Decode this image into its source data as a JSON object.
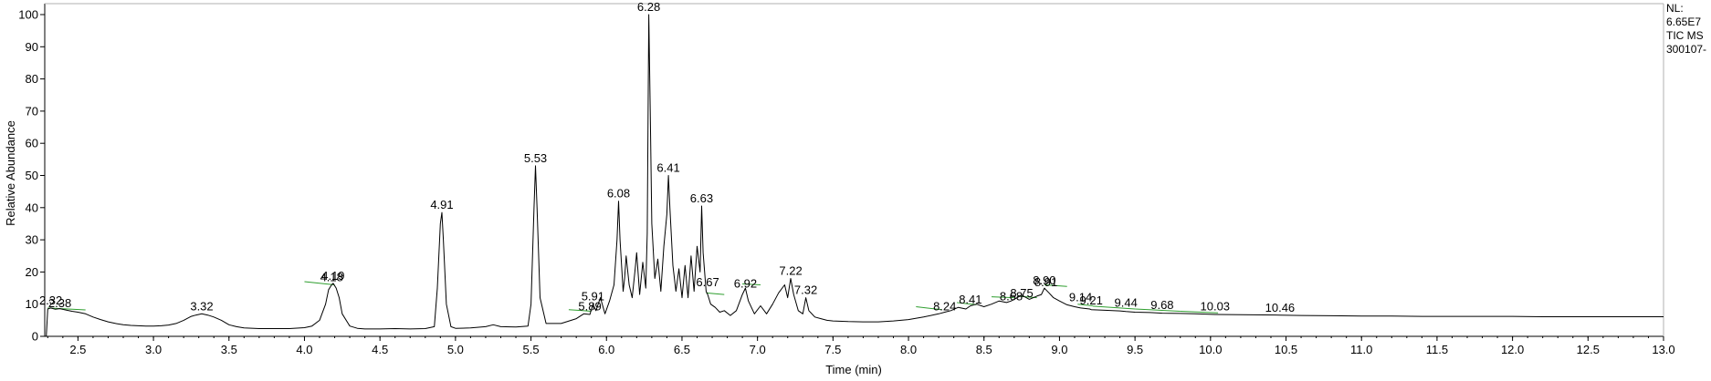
{
  "chart_data": {
    "type": "line",
    "title": "",
    "xlabel": "Time (min)",
    "ylabel": "Relative Abundance",
    "xlim": [
      2.28,
      13.0
    ],
    "ylim": [
      0,
      100
    ],
    "x_ticks": [
      2.5,
      3.0,
      3.5,
      4.0,
      4.5,
      5.0,
      5.5,
      6.0,
      6.5,
      7.0,
      7.5,
      8.0,
      8.5,
      9.0,
      9.5,
      10.0,
      10.5,
      11.0,
      11.5,
      12.0,
      12.5,
      13.0
    ],
    "x_tick_labels": [
      "2.5",
      "3.0",
      "3.5",
      "4.0",
      "4.5",
      "5.0",
      "5.5",
      "6.0",
      "6.5",
      "7.0",
      "7.5",
      "8.0",
      "8.5",
      "9.0",
      "9.5",
      "10.0",
      "10.5",
      "11.0",
      "11.5",
      "12.0",
      "12.5",
      "13.0"
    ],
    "y_ticks": [
      0,
      10,
      20,
      30,
      40,
      50,
      60,
      70,
      80,
      90,
      100
    ],
    "y_tick_labels": [
      "0",
      "10",
      "20",
      "30",
      "40",
      "50",
      "60",
      "70",
      "80",
      "90",
      "100"
    ],
    "grid": false,
    "line_color": "#000000",
    "integration_color": "#2e9e2e",
    "info_text": [
      "NL:",
      "6.65E7",
      "TIC  MS",
      "300107-"
    ],
    "series": [
      {
        "x": [
          2.28,
          2.29,
          2.3,
          2.32,
          2.35,
          2.38,
          2.42,
          2.46,
          2.5,
          2.55,
          2.6,
          2.65,
          2.7,
          2.75,
          2.8,
          2.85,
          2.9,
          2.95,
          3.0,
          3.05,
          3.1,
          3.15,
          3.2,
          3.25,
          3.28,
          3.32,
          3.36,
          3.4,
          3.45,
          3.5,
          3.55,
          3.6,
          3.7,
          3.8,
          3.9,
          4.0,
          4.05,
          4.1,
          4.14,
          4.16,
          4.18,
          4.19,
          4.21,
          4.23,
          4.25,
          4.3,
          4.35,
          4.4,
          4.5,
          4.6,
          4.7,
          4.8,
          4.86,
          4.88,
          4.9,
          4.91,
          4.92,
          4.94,
          4.97,
          5.0,
          5.1,
          5.2,
          5.25,
          5.3,
          5.4,
          5.48,
          5.5,
          5.52,
          5.53,
          5.54,
          5.56,
          5.6,
          5.7,
          5.8,
          5.85,
          5.89,
          5.91,
          5.93,
          5.96,
          5.99,
          6.02,
          6.05,
          6.07,
          6.08,
          6.09,
          6.11,
          6.12,
          6.13,
          6.15,
          6.17,
          6.19,
          6.2,
          6.22,
          6.24,
          6.26,
          6.27,
          6.28,
          6.29,
          6.3,
          6.32,
          6.34,
          6.36,
          6.38,
          6.4,
          6.41,
          6.42,
          6.44,
          6.46,
          6.48,
          6.5,
          6.52,
          6.54,
          6.56,
          6.58,
          6.6,
          6.62,
          6.63,
          6.64,
          6.66,
          6.67,
          6.69,
          6.72,
          6.75,
          6.78,
          6.82,
          6.86,
          6.9,
          6.92,
          6.94,
          6.98,
          7.02,
          7.06,
          7.1,
          7.14,
          7.18,
          7.2,
          7.22,
          7.24,
          7.27,
          7.3,
          7.32,
          7.34,
          7.38,
          7.42,
          7.46,
          7.5,
          7.6,
          7.7,
          7.8,
          7.9,
          8.0,
          8.1,
          8.2,
          8.24,
          8.28,
          8.33,
          8.38,
          8.41,
          8.45,
          8.5,
          8.55,
          8.6,
          8.65,
          8.68,
          8.72,
          8.75,
          8.8,
          8.85,
          8.88,
          8.9,
          8.91,
          8.93,
          8.96,
          9.0,
          9.05,
          9.1,
          9.14,
          9.2,
          9.21,
          9.3,
          9.4,
          9.44,
          9.5,
          9.6,
          9.68,
          9.8,
          9.9,
          10.03,
          10.2,
          10.46,
          10.6,
          10.8,
          11.0,
          11.2,
          11.4,
          11.6,
          11.8,
          12.0,
          12.2,
          12.4,
          12.6,
          12.8,
          13.0
        ],
        "y": [
          0,
          0,
          8.5,
          8.8,
          8.4,
          8.6,
          8.2,
          7.8,
          7.5,
          7.0,
          6.0,
          5.2,
          4.5,
          4.0,
          3.6,
          3.4,
          3.3,
          3.2,
          3.2,
          3.3,
          3.5,
          4.0,
          5.0,
          6.2,
          6.6,
          7.0,
          6.6,
          6.0,
          5.0,
          3.6,
          3.0,
          2.6,
          2.4,
          2.4,
          2.4,
          2.7,
          3.2,
          5.0,
          10.0,
          14.5,
          16.0,
          16.5,
          15.0,
          12.0,
          7.0,
          3.2,
          2.5,
          2.3,
          2.3,
          2.4,
          2.3,
          2.4,
          3.0,
          15.0,
          35.0,
          38.5,
          30.0,
          10.0,
          3.0,
          2.5,
          2.6,
          3.0,
          3.6,
          3.0,
          2.9,
          3.2,
          10.0,
          40.0,
          53.0,
          40.0,
          12.0,
          4.0,
          4.0,
          5.5,
          7.0,
          6.8,
          10.0,
          8.0,
          12.0,
          7.0,
          11.0,
          16.0,
          30.0,
          42.0,
          30.0,
          14.0,
          18.0,
          25.0,
          16.0,
          12.0,
          21.0,
          26.0,
          13.0,
          23.0,
          15.0,
          32.0,
          100.0,
          70.0,
          35.0,
          18.0,
          24.0,
          14.0,
          28.0,
          38.0,
          50.0,
          40.0,
          22.0,
          14.0,
          21.0,
          12.0,
          22.0,
          12.0,
          25.0,
          14.0,
          28.0,
          20.0,
          40.5,
          26.0,
          14.0,
          13.0,
          10.0,
          9.0,
          7.5,
          8.0,
          6.5,
          8.0,
          13.0,
          15.0,
          11.0,
          7.0,
          9.5,
          7.0,
          10.0,
          13.5,
          16.0,
          12.0,
          18.0,
          13.0,
          8.0,
          7.0,
          12.0,
          8.0,
          6.0,
          5.5,
          5.0,
          4.8,
          4.6,
          4.5,
          4.5,
          4.8,
          5.2,
          6.0,
          7.0,
          7.5,
          8.0,
          9.0,
          8.5,
          9.5,
          10.0,
          9.2,
          10.0,
          11.0,
          10.5,
          11.0,
          12.0,
          12.8,
          11.5,
          12.5,
          13.0,
          15.0,
          14.5,
          13.5,
          12.0,
          11.0,
          9.8,
          9.2,
          8.8,
          8.5,
          8.3,
          8.1,
          7.9,
          7.7,
          7.5,
          7.4,
          7.2,
          7.1,
          7.0,
          6.8,
          6.7,
          6.6,
          6.5,
          6.4,
          6.3,
          6.3,
          6.2,
          6.2,
          6.2,
          6.2,
          6.1,
          6.1,
          6.1,
          6.1,
          6.1
        ]
      }
    ],
    "peak_labels": [
      {
        "time": 2.32,
        "label": "2.32",
        "y": 8.8
      },
      {
        "time": 2.38,
        "label": "2.38",
        "y": 7.9
      },
      {
        "time": 3.32,
        "label": "3.32",
        "y": 7.0
      },
      {
        "time": 4.18,
        "label": "4.18",
        "y": 16.0
      },
      {
        "time": 4.19,
        "label": "4.19",
        "y": 16.5
      },
      {
        "time": 4.91,
        "label": "4.91",
        "y": 38.5
      },
      {
        "time": 5.53,
        "label": "5.53",
        "y": 53.0
      },
      {
        "time": 5.89,
        "label": "5.89",
        "y": 7.0
      },
      {
        "time": 5.91,
        "label": "5.91",
        "y": 10.0
      },
      {
        "time": 6.08,
        "label": "6.08",
        "y": 42.0
      },
      {
        "time": 6.28,
        "label": "6.28",
        "y": 100.0
      },
      {
        "time": 6.41,
        "label": "6.41",
        "y": 50.0
      },
      {
        "time": 6.63,
        "label": "6.63",
        "y": 40.5
      },
      {
        "time": 6.67,
        "label": "6.67",
        "y": 14.5
      },
      {
        "time": 6.92,
        "label": "6.92",
        "y": 14.0
      },
      {
        "time": 7.22,
        "label": "7.22",
        "y": 18.0
      },
      {
        "time": 7.32,
        "label": "7.32",
        "y": 12.0
      },
      {
        "time": 8.24,
        "label": "8.24",
        "y": 7.0
      },
      {
        "time": 8.41,
        "label": "8.41",
        "y": 9.0
      },
      {
        "time": 8.68,
        "label": "8.68",
        "y": 10.0
      },
      {
        "time": 8.75,
        "label": "8.75",
        "y": 11.0
      },
      {
        "time": 8.9,
        "label": "8.90",
        "y": 15.0
      },
      {
        "time": 8.91,
        "label": "8.91",
        "y": 14.5
      },
      {
        "time": 9.14,
        "label": "9.14",
        "y": 9.8
      },
      {
        "time": 9.21,
        "label": "9.21",
        "y": 8.8
      },
      {
        "time": 9.44,
        "label": "9.44",
        "y": 8.1
      },
      {
        "time": 9.68,
        "label": "9.68",
        "y": 7.4
      },
      {
        "time": 10.03,
        "label": "10.03",
        "y": 7.0
      },
      {
        "time": 10.46,
        "label": "10.46",
        "y": 6.5
      }
    ],
    "integration_baselines": [
      {
        "t1": 2.3,
        "y1": 8.8,
        "t2": 2.55,
        "y2": 8.2
      },
      {
        "t1": 4.0,
        "y1": 17.0,
        "t2": 4.2,
        "y2": 16.0
      },
      {
        "t1": 5.75,
        "y1": 8.3,
        "t2": 5.9,
        "y2": 7.8
      },
      {
        "t1": 6.66,
        "y1": 13.5,
        "t2": 6.78,
        "y2": 13.0
      },
      {
        "t1": 6.9,
        "y1": 16.3,
        "t2": 7.02,
        "y2": 16.0
      },
      {
        "t1": 8.05,
        "y1": 9.2,
        "t2": 8.22,
        "y2": 8.3
      },
      {
        "t1": 8.32,
        "y1": 10.5,
        "t2": 8.45,
        "y2": 9.8
      },
      {
        "t1": 8.55,
        "y1": 12.3,
        "t2": 8.7,
        "y2": 12.0
      },
      {
        "t1": 8.72,
        "y1": 12.5,
        "t2": 8.85,
        "y2": 12.0
      },
      {
        "t1": 8.9,
        "y1": 16.0,
        "t2": 9.05,
        "y2": 15.5
      },
      {
        "t1": 9.12,
        "y1": 10.0,
        "t2": 9.22,
        "y2": 9.5
      },
      {
        "t1": 9.22,
        "y1": 9.4,
        "t2": 9.5,
        "y2": 8.5
      },
      {
        "t1": 9.5,
        "y1": 8.5,
        "t2": 9.8,
        "y2": 7.8
      },
      {
        "t1": 9.8,
        "y1": 7.8,
        "t2": 10.05,
        "y2": 7.3
      }
    ]
  }
}
